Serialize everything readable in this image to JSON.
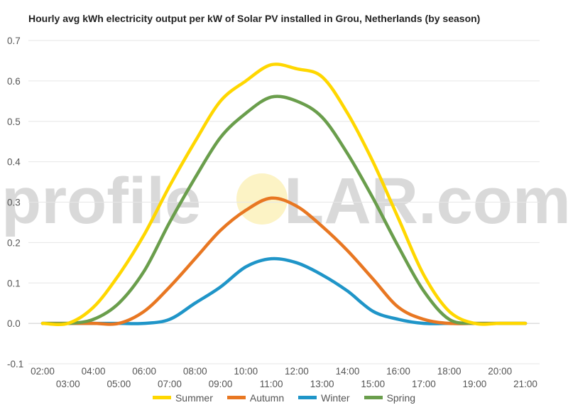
{
  "chart_data": {
    "type": "line",
    "title": "Hourly avg kWh electricity output per kW of Solar PV installed in Grou, Netherlands (by season)",
    "xlabel": "",
    "ylabel": "",
    "x": [
      "02:00",
      "03:00",
      "04:00",
      "05:00",
      "06:00",
      "07:00",
      "08:00",
      "09:00",
      "10:00",
      "11:00",
      "12:00",
      "13:00",
      "14:00",
      "15:00",
      "16:00",
      "17:00",
      "18:00",
      "19:00",
      "20:00",
      "21:00"
    ],
    "ylim": [
      -0.1,
      0.7
    ],
    "yticks": [
      -0.1,
      0.0,
      0.1,
      0.2,
      0.3,
      0.4,
      0.5,
      0.6,
      0.7
    ],
    "grid": true,
    "legend_position": "bottom",
    "series": [
      {
        "name": "Summer",
        "color": "#FFD700",
        "values": [
          0.0,
          0.0,
          0.04,
          0.12,
          0.22,
          0.34,
          0.45,
          0.55,
          0.6,
          0.64,
          0.63,
          0.61,
          0.52,
          0.4,
          0.26,
          0.12,
          0.03,
          0.0,
          0.0,
          0.0
        ]
      },
      {
        "name": "Autumn",
        "color": "#E87722",
        "values": [
          0.0,
          0.0,
          0.0,
          0.0,
          0.03,
          0.09,
          0.16,
          0.23,
          0.28,
          0.31,
          0.29,
          0.24,
          0.18,
          0.11,
          0.04,
          0.01,
          0.0,
          0.0,
          0.0,
          0.0
        ]
      },
      {
        "name": "Winter",
        "color": "#1F95C8",
        "values": [
          0.0,
          0.0,
          0.0,
          0.0,
          0.0,
          0.01,
          0.05,
          0.09,
          0.14,
          0.16,
          0.15,
          0.12,
          0.08,
          0.03,
          0.01,
          0.0,
          0.0,
          0.0,
          0.0,
          0.0
        ]
      },
      {
        "name": "Spring",
        "color": "#6A9E4C",
        "values": [
          0.0,
          0.0,
          0.01,
          0.05,
          0.13,
          0.25,
          0.36,
          0.46,
          0.52,
          0.56,
          0.55,
          0.51,
          0.42,
          0.31,
          0.19,
          0.08,
          0.01,
          0.0,
          0.0,
          0.0
        ]
      }
    ]
  },
  "watermark": {
    "part1": "profile",
    "part2": "LAR.com"
  }
}
